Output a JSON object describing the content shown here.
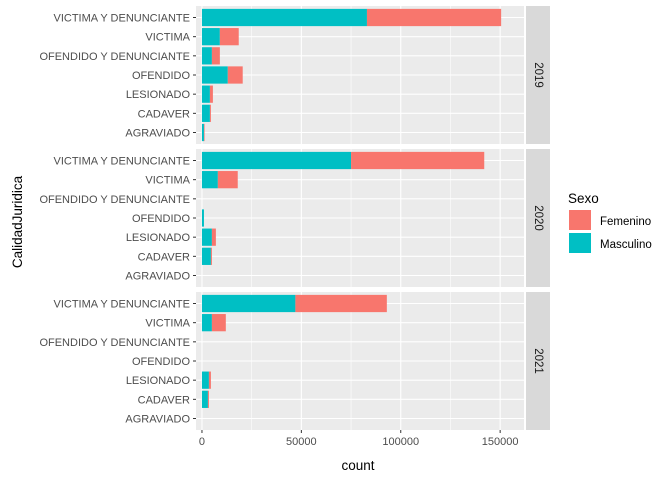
{
  "chart_data": {
    "type": "bar",
    "orientation": "horizontal",
    "stacked": true,
    "facet_by": "year",
    "xlabel": "count",
    "ylabel": "CalidadJuridica",
    "xlim": [
      -3000,
      162000
    ],
    "x_ticks": [
      0,
      50000,
      100000,
      150000
    ],
    "x_tick_labels": [
      "0",
      "50000",
      "100000",
      "150000"
    ],
    "categories": [
      "VICTIMA Y DENUNCIANTE",
      "VICTIMA",
      "OFENDIDO Y DENUNCIANTE",
      "OFENDIDO",
      "LESIONADO",
      "CADAVER",
      "AGRAVIADO"
    ],
    "legend": {
      "title": "Sexo",
      "position": "right",
      "entries": [
        {
          "label": "Femenino",
          "color": "#F8766D"
        },
        {
          "label": "Masculino",
          "color": "#00BFC4"
        }
      ]
    },
    "grid": true,
    "panel_background": "#EBEBEB",
    "strip_background": "#D9D9D9",
    "panels": [
      {
        "strip": "2019",
        "series": [
          {
            "name": "Masculino",
            "values": [
              83000,
              9000,
              5000,
              13000,
              4000,
              4000,
              1000
            ]
          },
          {
            "name": "Femenino",
            "values": [
              67500,
              9500,
              4000,
              7500,
              1500,
              500,
              300
            ]
          }
        ]
      },
      {
        "strip": "2020",
        "series": [
          {
            "name": "Masculino",
            "values": [
              75000,
              8000,
              0,
              1000,
              5000,
              4500,
              0
            ]
          },
          {
            "name": "Femenino",
            "values": [
              67000,
              10000,
              0,
              0,
              2000,
              500,
              0
            ]
          }
        ]
      },
      {
        "strip": "2021",
        "series": [
          {
            "name": "Masculino",
            "values": [
              47000,
              5000,
              0,
              0,
              3500,
              3000,
              0
            ]
          },
          {
            "name": "Femenino",
            "values": [
              46000,
              7000,
              0,
              0,
              1000,
              500,
              0
            ]
          }
        ]
      }
    ]
  }
}
